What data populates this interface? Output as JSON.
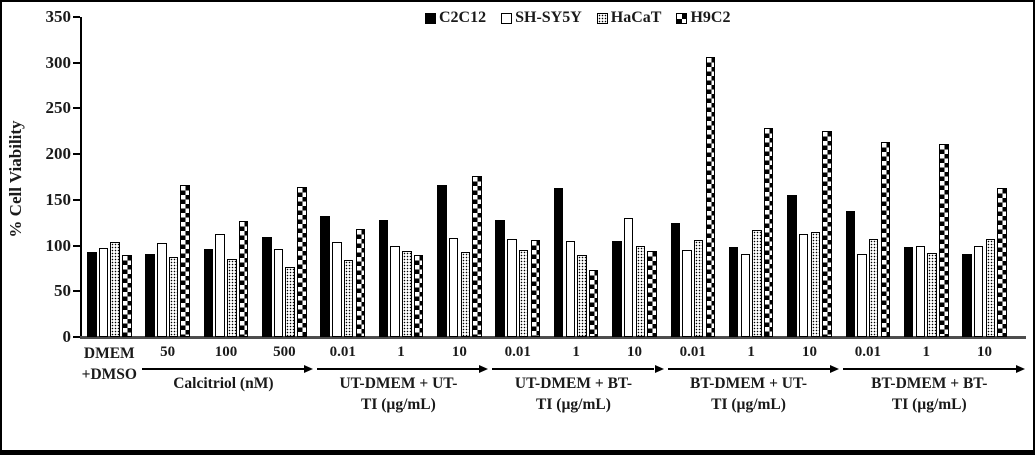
{
  "figure": {
    "background": "#ffffff",
    "border_color": "#000000",
    "baseline_color": "#4d4d4d",
    "text_color": "#1a1a1a"
  },
  "chart_data": {
    "type": "bar",
    "title": "",
    "xlabel": "",
    "ylabel": "% Cell Viability",
    "ylim": [
      0,
      350
    ],
    "ytick_step": 50,
    "yticks": [
      "0",
      "50",
      "100",
      "150",
      "200",
      "250",
      "300",
      "350"
    ],
    "grid": false,
    "legend_position": "top-center",
    "categories": [
      "DMEM+DMSO",
      "50",
      "100",
      "500",
      "0.01",
      "1",
      "10",
      "0.01",
      "1",
      "10",
      "0.01",
      "1",
      "10",
      "0.01",
      "1",
      "10"
    ],
    "groups": [
      {
        "name_lines": [
          "DMEM",
          "+DMSO"
        ],
        "tick_labels": [],
        "span": 1,
        "arrow": false
      },
      {
        "name_lines": [
          "Calcitriol  (nM)"
        ],
        "tick_labels": [
          "50",
          "100",
          "500"
        ],
        "span": 3,
        "arrow": true
      },
      {
        "name_lines": [
          "UT-DMEM + UT-",
          "TI (µg/mL)"
        ],
        "tick_labels": [
          "0.01",
          "1",
          "10"
        ],
        "span": 3,
        "arrow": true
      },
      {
        "name_lines": [
          "UT-DMEM + BT-",
          "TI (µg/mL)"
        ],
        "tick_labels": [
          "0.01",
          "1",
          "10"
        ],
        "span": 3,
        "arrow": true
      },
      {
        "name_lines": [
          "BT-DMEM + UT-",
          "TI (µg/mL)"
        ],
        "tick_labels": [
          "0.01",
          "1",
          "10"
        ],
        "span": 3,
        "arrow": true
      },
      {
        "name_lines": [
          "BT-DMEM + BT-",
          "TI (µg/mL)"
        ],
        "tick_labels": [
          "0.01",
          "1",
          "10"
        ],
        "span": 3,
        "arrow": true
      }
    ],
    "series": [
      {
        "name": "C2C12",
        "pattern": "solid",
        "pattern_desc": "solid black",
        "values": [
          93,
          91,
          96,
          109,
          132,
          128,
          166,
          128,
          163,
          105,
          125,
          98,
          155,
          138,
          98,
          91
        ]
      },
      {
        "name": "SH-SY5Y",
        "pattern": "plain",
        "pattern_desc": "white with black outline",
        "values": [
          97,
          103,
          113,
          96,
          104,
          100,
          108,
          107,
          105,
          130,
          95,
          91,
          113,
          91,
          100,
          99
        ]
      },
      {
        "name": "HaCaT",
        "pattern": "dots",
        "pattern_desc": "stippled dots",
        "values": [
          104,
          87,
          85,
          77,
          84,
          94,
          93,
          95,
          90,
          99,
          106,
          117,
          115,
          107,
          92,
          107
        ]
      },
      {
        "name": "H9C2",
        "pattern": "checker",
        "pattern_desc": "checkerboard",
        "values": [
          90,
          166,
          127,
          164,
          118,
          90,
          176,
          106,
          73,
          94,
          306,
          229,
          225,
          213,
          211,
          163
        ]
      }
    ]
  }
}
